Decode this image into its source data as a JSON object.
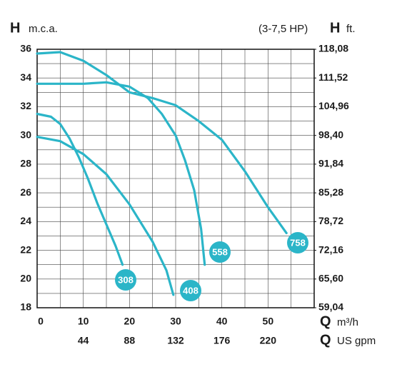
{
  "chart_data": {
    "type": "line",
    "y_label": {
      "symbol": "H",
      "unit": "m.c.a."
    },
    "y2_label": {
      "symbol": "H",
      "unit": "ft."
    },
    "subtitle": "(3-7,5 HP)",
    "x_label": {
      "symbol": "Q",
      "unit": "m³/h"
    },
    "x2_label": {
      "symbol": "Q",
      "unit": "US gpm"
    },
    "xlim": [
      0,
      60
    ],
    "xticks": [
      0,
      10,
      20,
      30,
      40,
      50
    ],
    "x_minor_ticks": [
      5,
      15,
      25,
      35,
      45,
      55
    ],
    "x2lim": [
      0,
      264
    ],
    "x2ticks": [
      44,
      88,
      132,
      176,
      220
    ],
    "ylim": [
      18,
      36
    ],
    "yticks": [
      18,
      20,
      22,
      24,
      26,
      28,
      30,
      32,
      34,
      36
    ],
    "y_minor_ticks": [
      19,
      21,
      23,
      25,
      27,
      29,
      31,
      33,
      35
    ],
    "y2lim": [
      59.04,
      118.08
    ],
    "y2ticks": [
      {
        "value": 59.04,
        "label": "59,04"
      },
      {
        "value": 65.6,
        "label": "65,60"
      },
      {
        "value": 72.16,
        "label": "72,16"
      },
      {
        "value": 78.72,
        "label": "78,72"
      },
      {
        "value": 85.28,
        "label": "85,28"
      },
      {
        "value": 91.84,
        "label": "91,84"
      },
      {
        "value": 98.4,
        "label": "98,40"
      },
      {
        "value": 104.96,
        "label": "104,96"
      },
      {
        "value": 111.52,
        "label": "111,52"
      },
      {
        "value": 118.08,
        "label": "118,08"
      }
    ],
    "grid": true,
    "color": "#2bb5c8",
    "series": [
      {
        "name": "308",
        "x": [
          0,
          3,
          5,
          7,
          9,
          11,
          13,
          15,
          17,
          18.5
        ],
        "values": [
          31.5,
          31.3,
          30.8,
          29.8,
          28.5,
          27,
          25.3,
          23.8,
          22.3,
          21
        ]
      },
      {
        "name": "408",
        "x": [
          0,
          5,
          10,
          15,
          20,
          25,
          28,
          29.5
        ],
        "values": [
          29.9,
          29.6,
          28.7,
          27.3,
          25.2,
          22.6,
          20.6,
          18.9
        ]
      },
      {
        "name": "558",
        "x": [
          0,
          10,
          15,
          20,
          24,
          27,
          30,
          32,
          34,
          35.5,
          36.3
        ],
        "values": [
          33.6,
          33.6,
          33.7,
          33.4,
          32.6,
          31.5,
          30,
          28.3,
          26.2,
          23.5,
          21
        ]
      },
      {
        "name": "758",
        "x": [
          0,
          5,
          10,
          15,
          20,
          25,
          30,
          35,
          40,
          45,
          50,
          54
        ],
        "values": [
          35.7,
          35.8,
          35.2,
          34.2,
          33,
          32.6,
          32.1,
          31,
          29.7,
          27.5,
          25,
          23.2
        ]
      }
    ]
  }
}
